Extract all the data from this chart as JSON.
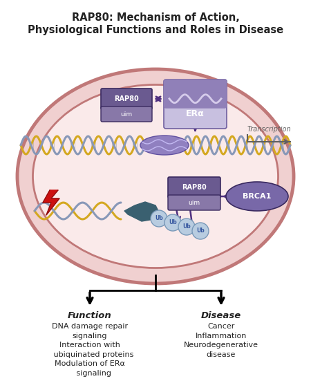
{
  "title_line1": "RAP80: Mechanism of Action,",
  "title_line2": "Physiological Functions and Roles in Disease",
  "title_fontsize": 10.5,
  "bg_color": "#ffffff",
  "outer_ellipse_fc": "#f0d0d0",
  "outer_ellipse_ec": "#c07878",
  "inner_ellipse_fc": "#faeaea",
  "inner_ellipse_ec": "#c07878",
  "rap80_fc": "#6a5a90",
  "rap80_uim_fc": "#8878a8",
  "era_fc_top": "#9080b8",
  "era_fc_bot": "#c8c0e0",
  "brca1_fc": "#7868a8",
  "dna_gold": "#d4a820",
  "dna_blue": "#8898b8",
  "dna_purple": "#8878b8",
  "ub_fc": "#b8cce0",
  "ub_ec": "#7898b8",
  "ub_text": "#3858a0",
  "protein_fc": "#3a6070",
  "arrow_color": "#503080",
  "transcription_arrow": "#606060",
  "bolt_color": "#cc1010",
  "bolt_dark": "#881010",
  "text_color": "#222222",
  "function_title": "Function",
  "function_lines": [
    "DNA damage repair",
    "signaling",
    "Interaction with",
    "ubiquinated proteins",
    "Modulation of ERα",
    "signaling"
  ],
  "disease_title": "Disease",
  "disease_lines": [
    "Cancer",
    "Inflammation",
    "Neurodegenerative",
    "disease"
  ]
}
